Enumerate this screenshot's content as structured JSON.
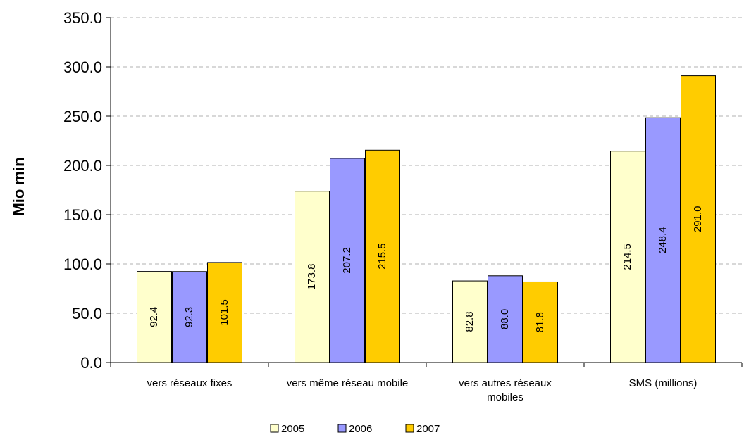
{
  "chart_data": {
    "type": "bar",
    "ylabel": "Mio min",
    "xlabel": "",
    "ylim": [
      0,
      350
    ],
    "ytick_step": 50,
    "ytick_labels": [
      "0.0",
      "50.0",
      "100.0",
      "150.0",
      "200.0",
      "250.0",
      "300.0",
      "350.0"
    ],
    "grid": "horizontal dashed",
    "legend_position": "bottom",
    "categories": [
      [
        "vers réseaux fixes"
      ],
      [
        "vers même réseau mobile"
      ],
      [
        "vers autres réseaux",
        "mobiles"
      ],
      [
        "SMS (millions)"
      ]
    ],
    "series": [
      {
        "name": "2005",
        "color": "#FFFFCC",
        "values": [
          92.4,
          173.8,
          82.8,
          214.5
        ],
        "labels": [
          "92.4",
          "173.8",
          "82.8",
          "214.5"
        ]
      },
      {
        "name": "2006",
        "color": "#9999FF",
        "values": [
          92.3,
          207.2,
          88.0,
          248.4
        ],
        "labels": [
          "92.3",
          "207.2",
          "88.0",
          "248.4"
        ]
      },
      {
        "name": "2007",
        "color": "#FFCC00",
        "values": [
          101.5,
          215.5,
          81.8,
          291.0
        ],
        "labels": [
          "101.5",
          "215.5",
          "81.8",
          "291.0"
        ]
      }
    ]
  }
}
